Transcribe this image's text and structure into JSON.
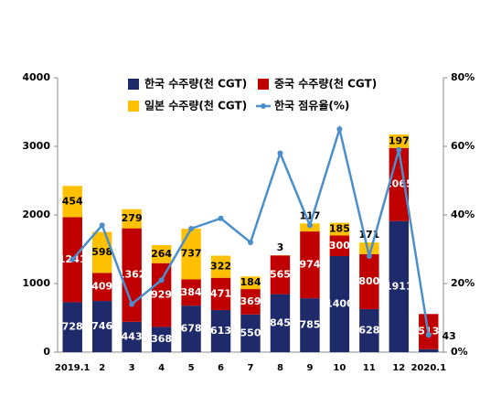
{
  "chart_data": {
    "type": "bar-line",
    "categories": [
      "2019.1",
      "2",
      "3",
      "4",
      "5",
      "6",
      "7",
      "8",
      "9",
      "10",
      "11",
      "12",
      "2020.1"
    ],
    "series": [
      {
        "name": "한국 수주량(천 CGT)",
        "color": "#1f2a6b",
        "type": "bar",
        "values": [
          728,
          746,
          443,
          368,
          678,
          613,
          550,
          845,
          785,
          1400,
          628,
          1911,
          43
        ]
      },
      {
        "name": "중국 수주량(천 CGT)",
        "color": "#c00000",
        "type": "bar",
        "values": [
          1241,
          409,
          1362,
          929,
          384,
          471,
          369,
          565,
          974,
          300,
          800,
          1065,
          513
        ]
      },
      {
        "name": "일본 수주량(천 CGT)",
        "color": "#ffc000",
        "type": "bar",
        "values": [
          454,
          598,
          279,
          264,
          737,
          322,
          184,
          3,
          117,
          185,
          171,
          197,
          null
        ]
      },
      {
        "name": "한국 점유율(%)",
        "color": "#4a8fcc",
        "type": "line",
        "axis": "y2",
        "values": [
          27,
          37,
          14,
          21,
          36,
          39,
          32,
          58,
          37,
          65,
          28,
          59,
          5
        ]
      }
    ],
    "ylim": [
      0,
      4000
    ],
    "yticks": [
      0,
      1000,
      2000,
      3000,
      4000
    ],
    "y2lim": [
      0,
      80
    ],
    "y2ticks": [
      {
        "value": 0,
        "label": "0%"
      },
      {
        "value": 20,
        "label": "20%"
      },
      {
        "value": 40,
        "label": "40%"
      },
      {
        "value": 60,
        "label": "60%"
      },
      {
        "value": 80,
        "label": "80%"
      }
    ],
    "stacked": true
  }
}
